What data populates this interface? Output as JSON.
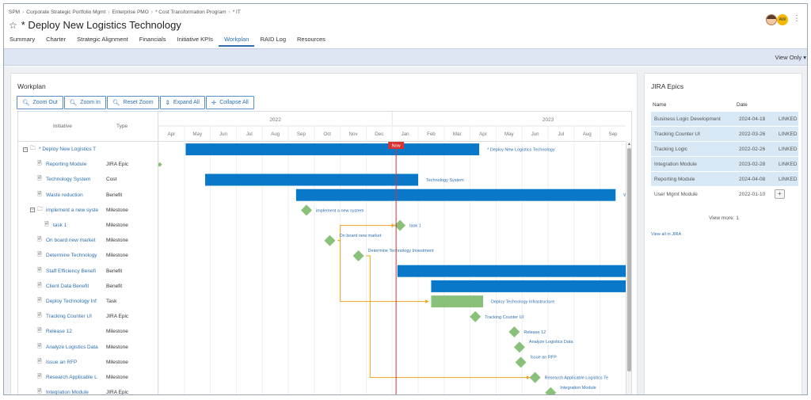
{
  "breadcrumb": [
    "SPM",
    "Corporate Strategic Portfolio Mgmt",
    "Enterprise PMO",
    "* Cost Transformation Program",
    "* IT"
  ],
  "page_title": "* Deploy New Logistics Technology",
  "user": {
    "initials": "AW"
  },
  "tabs": [
    "Summary",
    "Charter",
    "Strategic Alignment",
    "Financials",
    "Initiative KPIs",
    "Workplan",
    "RAID Log",
    "Resources"
  ],
  "active_tab": "Workplan",
  "view_mode": "View Only",
  "workplan": {
    "title": "Workplan",
    "buttons": {
      "zoom_out": "Zoom Out",
      "zoom_in": "Zoom In",
      "reset_zoom": "Reset Zoom",
      "expand_all": "Expand All",
      "collapse_all": "Collapse All"
    },
    "columns": {
      "initiative": "Initiative",
      "type": "Type"
    },
    "years": [
      "2022",
      "2023"
    ],
    "months": [
      "Apr",
      "May",
      "Jun",
      "Jul",
      "Aug",
      "Sep",
      "Oct",
      "Nov",
      "Dec",
      "Jan",
      "Feb",
      "Mar",
      "Apr",
      "May",
      "Jun",
      "Jul",
      "Aug",
      "Sep"
    ],
    "now_label": "Now",
    "rows": [
      {
        "name": "* Deploy New Logistics T",
        "type": "",
        "level": 0,
        "icon": "folder",
        "expander": "minus"
      },
      {
        "name": "Reporting Module",
        "type": "JIRA Epic",
        "level": 1,
        "icon": "doc"
      },
      {
        "name": "Technology System",
        "type": "Cost",
        "level": 1,
        "icon": "doc"
      },
      {
        "name": "Waste reduction",
        "type": "Benefit",
        "level": 1,
        "icon": "doc"
      },
      {
        "name": "implement a new syste",
        "type": "Milestone",
        "level": 1,
        "icon": "folder",
        "expander": "minus"
      },
      {
        "name": "task 1",
        "type": "Milestone",
        "level": 2,
        "icon": "doc"
      },
      {
        "name": "On board new market",
        "type": "Milestone",
        "level": 1,
        "icon": "doc"
      },
      {
        "name": "Determine Technology",
        "type": "Milestone",
        "level": 1,
        "icon": "doc"
      },
      {
        "name": "Staff Efficiency Benefi",
        "type": "Benefit",
        "level": 1,
        "icon": "doc"
      },
      {
        "name": "Client Data Benefit",
        "type": "Benefit",
        "level": 1,
        "icon": "doc"
      },
      {
        "name": "Deploy Technology Inf",
        "type": "Task",
        "level": 1,
        "icon": "doc"
      },
      {
        "name": "Tracking Counter UI",
        "type": "JIRA Epic",
        "level": 1,
        "icon": "doc"
      },
      {
        "name": "Release 12",
        "type": "Milestone",
        "level": 1,
        "icon": "doc"
      },
      {
        "name": "Analyze Logistics Data",
        "type": "Milestone",
        "level": 1,
        "icon": "doc"
      },
      {
        "name": "Issue an RFP",
        "type": "Milestone",
        "level": 1,
        "icon": "doc"
      },
      {
        "name": "Research Applicable L",
        "type": "Milestone",
        "level": 1,
        "icon": "doc"
      },
      {
        "name": "Integration Module",
        "type": "JIRA Epic",
        "level": 1,
        "icon": "doc"
      }
    ],
    "bars": [
      {
        "row": 0,
        "start": 1.05,
        "end": 12.35,
        "color": "#0a78c8",
        "label": "* Deploy New Logistics Technology"
      },
      {
        "row": 2,
        "start": 1.8,
        "end": 10.0,
        "color": "#0a78c8",
        "label": "Technology System"
      },
      {
        "row": 3,
        "start": 5.3,
        "end": 17.6,
        "color": "#0a78c8",
        "label": "Wer"
      },
      {
        "row": 8,
        "start": 9.2,
        "end": 18.0,
        "color": "#0a78c8",
        "label": ""
      },
      {
        "row": 9,
        "start": 10.5,
        "end": 18.0,
        "color": "#0a78c8",
        "label": ""
      },
      {
        "row": 10,
        "start": 10.5,
        "end": 12.5,
        "color": "#8ac17a",
        "label": "Deploy Technology Infrastructure"
      }
    ],
    "milestones": [
      {
        "row": 1,
        "at": 0.05,
        "label": "",
        "small": true
      },
      {
        "row": 4,
        "at": 5.7,
        "label": "implement a new system"
      },
      {
        "row": 5,
        "at": 9.3,
        "label": "task 1"
      },
      {
        "row": 6,
        "at": 6.6,
        "label": "On board new market",
        "label_up": true
      },
      {
        "row": 7,
        "at": 7.7,
        "label": "Determine Technology Investment",
        "label_up": true
      },
      {
        "row": 11,
        "at": 12.2,
        "label": "Tracking Counter UI"
      },
      {
        "row": 12,
        "at": 13.7,
        "label": "Release 12"
      },
      {
        "row": 13,
        "at": 13.9,
        "label": "Analyze Logistics Data",
        "label_up": true
      },
      {
        "row": 14,
        "at": 13.95,
        "label": "Issue an RFP",
        "label_up": true
      },
      {
        "row": 15,
        "at": 14.5,
        "label": "Research Applicable Logistics Te"
      },
      {
        "row": 16,
        "at": 15.1,
        "label": "Integration Module",
        "label_up": true
      }
    ],
    "dependencies": [
      {
        "from_row": 6,
        "from_at": 6.9,
        "mid": 7.0,
        "to_row": 5,
        "to_at": 9.1
      },
      {
        "from_row": 6,
        "from_at": 6.9,
        "mid": 7.0,
        "to_row": 10,
        "to_at": 10.4
      },
      {
        "from_row": 7,
        "from_at": 8.0,
        "mid": 8.15,
        "to_row": 15,
        "to_at": 14.3
      }
    ],
    "now_at": 9.15,
    "accent": "#2d6fb0",
    "bar_color": "#0a78c8",
    "milestone_color": "#8ac17a",
    "dependency_color": "#f0a21e",
    "now_color": "#d93232"
  },
  "jira": {
    "title": "JIRA Epics",
    "columns": {
      "name": "Name",
      "date": "Date"
    },
    "rows": [
      {
        "name": "Business Logic Development",
        "date": "2024-04-18",
        "status": "LINKED"
      },
      {
        "name": "Tracking Counter UI",
        "date": "2022-03-26",
        "status": "LINKED"
      },
      {
        "name": "Tracking Logic",
        "date": "2022-02-26",
        "status": "LINKED"
      },
      {
        "name": "Integration Module",
        "date": "2023-02-28",
        "status": "LINKED"
      },
      {
        "name": "Reporting Module",
        "date": "2024-04-08",
        "status": "LINKED"
      },
      {
        "name": "User Mgmt Module",
        "date": "2022-01-10",
        "status": ""
      }
    ],
    "add_label": "+",
    "view_more": "View more: 1",
    "view_all": "View all in JIRA"
  }
}
